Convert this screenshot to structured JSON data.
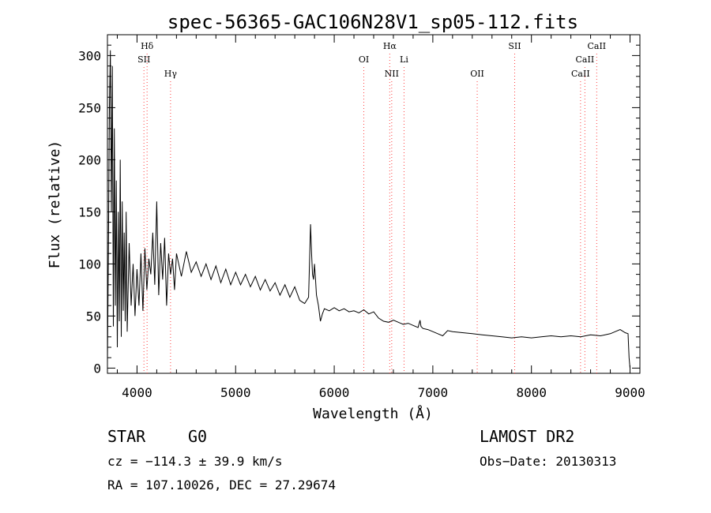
{
  "chart_data": {
    "type": "line",
    "title": "spec-56365-GAC106N28V1_sp05-112.fits",
    "xlabel": "Wavelength (Å)",
    "ylabel": "Flux (relative)",
    "xlim": [
      3700,
      9100
    ],
    "ylim": [
      -5,
      320
    ],
    "xticks": [
      4000,
      5000,
      6000,
      7000,
      8000,
      9000
    ],
    "yticks": [
      0,
      50,
      100,
      150,
      200,
      250,
      300
    ],
    "grid": false,
    "line_color": "#000000",
    "marker_color": "#ff4040",
    "series": [
      {
        "x": [
          3700,
          3710,
          3720,
          3730,
          3740,
          3750,
          3760,
          3770,
          3780,
          3790,
          3800,
          3810,
          3820,
          3830,
          3840,
          3850,
          3860,
          3870,
          3880,
          3890,
          3900,
          3920,
          3940,
          3960,
          3980,
          4000,
          4020,
          4040,
          4060,
          4080,
          4100,
          4120,
          4140,
          4160,
          4180,
          4200,
          4220,
          4240,
          4260,
          4280,
          4300,
          4320,
          4340,
          4360,
          4380,
          4400,
          4450,
          4500,
          4550,
          4600,
          4650,
          4700,
          4750,
          4800,
          4850,
          4900,
          4950,
          5000,
          5050,
          5100,
          5150,
          5200,
          5250,
          5300,
          5350,
          5400,
          5450,
          5500,
          5550,
          5600,
          5650,
          5700,
          5740,
          5760,
          5770,
          5780,
          5790,
          5800,
          5810,
          5820,
          5840,
          5860,
          5880,
          5900,
          5950,
          6000,
          6050,
          6100,
          6150,
          6200,
          6250,
          6300,
          6350,
          6400,
          6450,
          6500,
          6550,
          6600,
          6650,
          6700,
          6750,
          6800,
          6850,
          6870,
          6880,
          6900,
          6950,
          7000,
          7050,
          7100,
          7150,
          7200,
          7300,
          7400,
          7500,
          7600,
          7700,
          7800,
          7900,
          8000,
          8100,
          8200,
          8300,
          8400,
          8500,
          8600,
          8700,
          8800,
          8850,
          8900,
          8950,
          8980,
          8990,
          9000
        ],
        "y": [
          5,
          110,
          250,
          305,
          150,
          290,
          40,
          230,
          60,
          180,
          20,
          150,
          45,
          200,
          30,
          160,
          55,
          130,
          45,
          150,
          35,
          120,
          60,
          100,
          50,
          95,
          60,
          110,
          55,
          115,
          75,
          105,
          90,
          130,
          80,
          160,
          70,
          120,
          85,
          125,
          60,
          110,
          90,
          105,
          75,
          110,
          88,
          112,
          92,
          102,
          88,
          100,
          85,
          98,
          82,
          95,
          80,
          92,
          80,
          90,
          78,
          88,
          75,
          85,
          74,
          82,
          70,
          80,
          68,
          78,
          65,
          62,
          68,
          138,
          110,
          90,
          85,
          100,
          85,
          70,
          60,
          45,
          52,
          57,
          55,
          58,
          55,
          57,
          54,
          55,
          53,
          56,
          52,
          54,
          48,
          45,
          44,
          46,
          44,
          42,
          43,
          41,
          39,
          46,
          40,
          38,
          37,
          35,
          33,
          31,
          36,
          35,
          34,
          33,
          32,
          31,
          30,
          29,
          30,
          29,
          30,
          31,
          30,
          31,
          30,
          32,
          31,
          33,
          35,
          37,
          34,
          33,
          10,
          0
        ]
      }
    ],
    "line_markers": [
      {
        "label": "Hδ",
        "wavelength": 4102,
        "row": 0
      },
      {
        "label": "SII",
        "wavelength": 4070,
        "row": 1
      },
      {
        "label": "Hγ",
        "wavelength": 4340,
        "row": 2
      },
      {
        "label": "OI",
        "wavelength": 6300,
        "row": 1
      },
      {
        "label": "Hα",
        "wavelength": 6563,
        "row": 0
      },
      {
        "label": "Li",
        "wavelength": 6708,
        "row": 1
      },
      {
        "label": "NII",
        "wavelength": 6583,
        "row": 2
      },
      {
        "label": "OII",
        "wavelength": 7450,
        "row": 2
      },
      {
        "label": "SII",
        "wavelength": 7830,
        "row": 0
      },
      {
        "label": "CaII",
        "wavelength": 8662,
        "row": 0
      },
      {
        "label": "CaII",
        "wavelength": 8542,
        "row": 1
      },
      {
        "label": "CaII",
        "wavelength": 8498,
        "row": 2
      }
    ]
  },
  "info": {
    "object_class": "STAR",
    "subclass": "G0",
    "redshift": "cz = −114.3 ± 39.9 km/s",
    "coordinates": "RA = 107.10026, DEC =  27.29674",
    "survey": "LAMOST DR2",
    "obs_date": "Obs−Date: 20130313"
  }
}
